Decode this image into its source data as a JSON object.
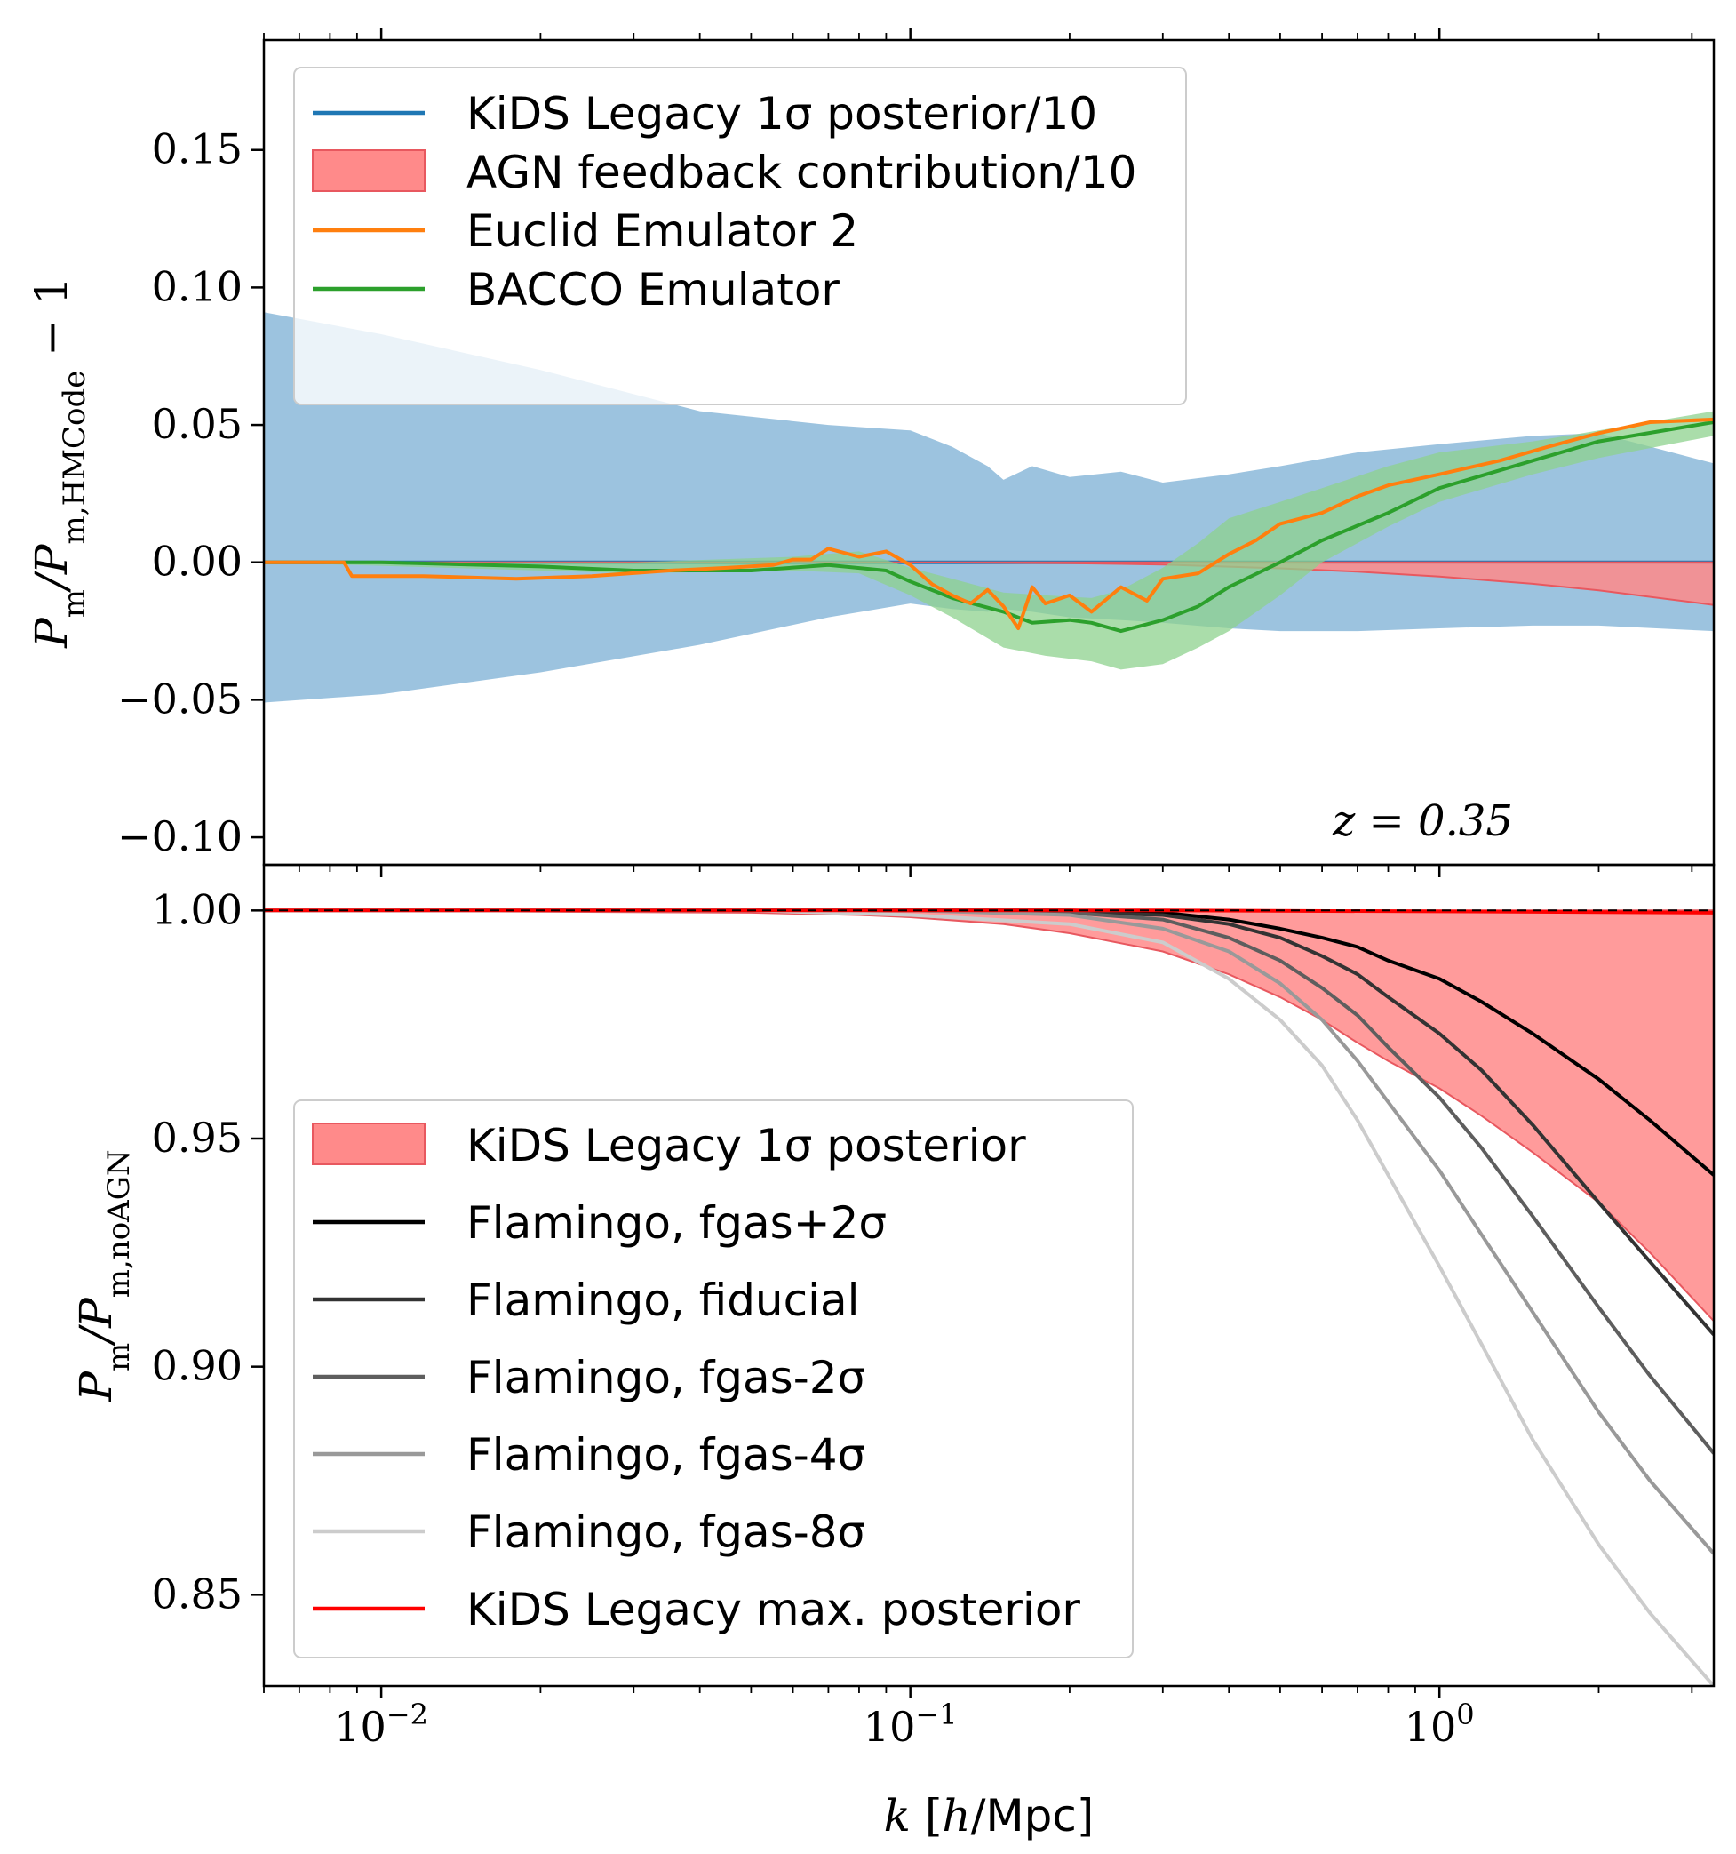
{
  "chart_data": [
    {
      "type": "line",
      "panel": "top",
      "title": "",
      "xlabel": "",
      "ylabel": "Pm/Pm,HMCode − 1",
      "ylabel_main": "P",
      "ylabel_sub1": "m",
      "ylabel_mid": "/P",
      "ylabel_sub2": "m,HMCode",
      "ylabel_tail": " − 1",
      "xscale": "log",
      "xlim": [
        0.006,
        3.3
      ],
      "ylim": [
        -0.11,
        0.19
      ],
      "yticks": [
        0.15,
        0.1,
        0.05,
        0.0,
        -0.05,
        -0.1
      ],
      "ytick_labels": [
        "0.15",
        "0.10",
        "0.05",
        "0.00",
        "−0.05",
        "−0.10"
      ],
      "annotation": "z = 0.35",
      "legend_position": "upper-left",
      "legend": [
        {
          "label": "KiDS Legacy 1σ posterior/10",
          "kind": "line",
          "color": "#1f77b4"
        },
        {
          "label": "AGN feedback contribution/10",
          "kind": "patch",
          "color": "#ff8a8a",
          "edge": "#e8585f"
        },
        {
          "label": "Euclid Emulator 2",
          "kind": "line",
          "color": "#ff7f0e"
        },
        {
          "label": "BACCO Emulator",
          "kind": "line",
          "color": "#2ca02c"
        }
      ],
      "series": [
        {
          "name": "KiDS Legacy 1σ posterior/10 band",
          "kind": "band",
          "color": "#7bafd4",
          "x": [
            0.006,
            0.01,
            0.02,
            0.04,
            0.07,
            0.1,
            0.12,
            0.14,
            0.15,
            0.17,
            0.2,
            0.25,
            0.3,
            0.4,
            0.5,
            0.7,
            1.0,
            1.5,
            2.0,
            3.3
          ],
          "upper": [
            0.091,
            0.083,
            0.07,
            0.055,
            0.05,
            0.048,
            0.042,
            0.035,
            0.03,
            0.035,
            0.031,
            0.033,
            0.029,
            0.032,
            0.035,
            0.04,
            0.043,
            0.046,
            0.047,
            0.036
          ],
          "lower": [
            -0.051,
            -0.048,
            -0.04,
            -0.03,
            -0.02,
            -0.015,
            -0.017,
            -0.018,
            -0.017,
            -0.018,
            -0.02,
            -0.021,
            -0.022,
            -0.024,
            -0.025,
            -0.025,
            -0.024,
            -0.023,
            -0.023,
            -0.025
          ]
        },
        {
          "name": "KiDS Legacy 1σ posterior/10",
          "kind": "line",
          "color": "#1f77b4",
          "x": [
            0.006,
            3.3
          ],
          "y": [
            0.0,
            0.0
          ]
        },
        {
          "name": "AGN feedback contribution/10",
          "kind": "band",
          "color": "#ff8a8a",
          "edge": "#e8585f",
          "x": [
            0.006,
            0.1,
            0.2,
            0.3,
            0.5,
            0.7,
            1.0,
            1.5,
            2.0,
            3.3
          ],
          "upper": [
            0,
            0,
            0,
            0,
            0,
            0,
            0,
            0,
            0,
            0
          ],
          "lower": [
            0,
            0,
            -0.0003,
            -0.0008,
            -0.0022,
            -0.0034,
            -0.0052,
            -0.0078,
            -0.0102,
            -0.0155
          ]
        },
        {
          "name": "BACCO Emulator band",
          "kind": "band",
          "color": "#8ed28e",
          "x": [
            0.006,
            0.03,
            0.06,
            0.08,
            0.1,
            0.12,
            0.15,
            0.18,
            0.22,
            0.25,
            0.3,
            0.35,
            0.4,
            0.5,
            0.6,
            0.8,
            1.0,
            1.5,
            2.0,
            3.3
          ],
          "upper": [
            0.0,
            0.0,
            0.002,
            0.004,
            -0.002,
            -0.006,
            -0.011,
            -0.012,
            -0.013,
            -0.01,
            -0.002,
            0.007,
            0.016,
            0.022,
            0.027,
            0.035,
            0.04,
            0.044,
            0.048,
            0.055
          ],
          "lower": [
            0.0,
            -0.004,
            -0.003,
            -0.004,
            -0.012,
            -0.02,
            -0.031,
            -0.034,
            -0.036,
            -0.039,
            -0.037,
            -0.031,
            -0.025,
            -0.012,
            0.0,
            0.013,
            0.022,
            0.032,
            0.038,
            0.046
          ]
        },
        {
          "name": "BACCO Emulator",
          "kind": "line",
          "color": "#2ca02c",
          "x": [
            0.006,
            0.01,
            0.02,
            0.03,
            0.05,
            0.07,
            0.09,
            0.1,
            0.12,
            0.15,
            0.17,
            0.2,
            0.22,
            0.25,
            0.3,
            0.35,
            0.4,
            0.5,
            0.6,
            0.8,
            1.0,
            1.5,
            2.0,
            3.3
          ],
          "y": [
            0.0,
            0.0,
            -0.0015,
            -0.003,
            -0.003,
            -0.001,
            -0.003,
            -0.007,
            -0.013,
            -0.018,
            -0.022,
            -0.021,
            -0.022,
            -0.025,
            -0.021,
            -0.016,
            -0.009,
            0.0,
            0.008,
            0.018,
            0.027,
            0.037,
            0.044,
            0.051
          ]
        },
        {
          "name": "Euclid Emulator 2",
          "kind": "line",
          "color": "#ff7f0e",
          "x": [
            0.006,
            0.0085,
            0.0088,
            0.012,
            0.018,
            0.025,
            0.035,
            0.045,
            0.055,
            0.06,
            0.065,
            0.07,
            0.08,
            0.09,
            0.1,
            0.11,
            0.12,
            0.13,
            0.14,
            0.15,
            0.16,
            0.17,
            0.18,
            0.2,
            0.22,
            0.25,
            0.28,
            0.3,
            0.35,
            0.4,
            0.45,
            0.5,
            0.6,
            0.7,
            0.8,
            1.0,
            1.3,
            1.6,
            2.0,
            2.5,
            3.3
          ],
          "y": [
            0.0,
            0.0,
            -0.005,
            -0.005,
            -0.006,
            -0.005,
            -0.003,
            -0.002,
            -0.001,
            0.001,
            0.001,
            0.005,
            0.002,
            0.004,
            -0.001,
            -0.008,
            -0.012,
            -0.015,
            -0.01,
            -0.016,
            -0.024,
            -0.009,
            -0.015,
            -0.012,
            -0.018,
            -0.009,
            -0.014,
            -0.006,
            -0.004,
            0.003,
            0.008,
            0.014,
            0.018,
            0.024,
            0.028,
            0.032,
            0.037,
            0.042,
            0.047,
            0.051,
            0.052
          ]
        }
      ]
    },
    {
      "type": "line",
      "panel": "bottom",
      "title": "",
      "xlabel": "k [h/Mpc]",
      "xlabel_k": "k",
      "xlabel_open": "[",
      "xlabel_h": "h",
      "xlabel_unit": "/Mpc]",
      "ylabel": "Pm/Pm,noAGN",
      "ylabel_main": "P",
      "ylabel_sub1": "m",
      "ylabel_mid": "/P",
      "ylabel_sub2": "m,noAGN",
      "xscale": "log",
      "xlim": [
        0.006,
        3.3
      ],
      "ylim": [
        0.83,
        1.01
      ],
      "yticks": [
        1.0,
        0.95,
        0.9,
        0.85
      ],
      "ytick_labels": [
        "1.00",
        "0.95",
        "0.90",
        "0.85"
      ],
      "xticks": [
        0.01,
        0.1,
        1.0
      ],
      "xtick_base": "10",
      "xtick_exponents": [
        "−2",
        "−1",
        "0"
      ],
      "legend_position": "lower-left",
      "legend": [
        {
          "label": "KiDS Legacy 1σ posterior",
          "kind": "patch",
          "color": "#ff8a8a",
          "edge": "#e8585f"
        },
        {
          "label": "Flamingo, fgas+2σ",
          "kind": "line",
          "color": "#000000"
        },
        {
          "label": "Flamingo, fiducial",
          "kind": "line",
          "color": "#333333"
        },
        {
          "label": "Flamingo, fgas-2σ",
          "kind": "line",
          "color": "#5e5e5e"
        },
        {
          "label": "Flamingo, fgas-4σ",
          "kind": "line",
          "color": "#999999"
        },
        {
          "label": "Flamingo, fgas-8σ",
          "kind": "line",
          "color": "#cccccc"
        },
        {
          "label": "KiDS Legacy max. posterior",
          "kind": "line",
          "color": "#ff0000"
        }
      ],
      "series": [
        {
          "name": "KiDS Legacy 1σ posterior",
          "kind": "band",
          "color": "#ff8a8a",
          "edge": "#e8585f",
          "x": [
            0.006,
            0.05,
            0.08,
            0.1,
            0.15,
            0.2,
            0.3,
            0.4,
            0.5,
            0.6,
            0.7,
            0.8,
            1.0,
            1.2,
            1.5,
            2.0,
            2.5,
            3.3
          ],
          "upper": [
            1.0,
            1.0,
            1.0,
            1.0,
            1.0,
            1.0,
            1.0,
            1.0,
            1.0,
            1.0,
            1.0,
            1.0,
            1.0,
            1.0,
            1.0,
            1.0,
            1.0,
            1.0
          ],
          "lower": [
            1.0,
            0.9995,
            0.999,
            0.9985,
            0.997,
            0.995,
            0.991,
            0.986,
            0.981,
            0.976,
            0.971,
            0.967,
            0.961,
            0.955,
            0.947,
            0.936,
            0.925,
            0.91
          ]
        },
        {
          "name": "Flamingo, fgas+2σ",
          "kind": "line",
          "color": "#000000",
          "x": [
            0.006,
            0.1,
            0.2,
            0.3,
            0.4,
            0.5,
            0.6,
            0.7,
            0.8,
            1.0,
            1.2,
            1.5,
            2.0,
            2.5,
            3.3
          ],
          "y": [
            1.0,
            1.0,
            1.0,
            0.9995,
            0.998,
            0.996,
            0.994,
            0.992,
            0.989,
            0.985,
            0.98,
            0.973,
            0.963,
            0.954,
            0.942
          ]
        },
        {
          "name": "Flamingo, fiducial",
          "kind": "line",
          "color": "#333333",
          "x": [
            0.006,
            0.1,
            0.2,
            0.3,
            0.4,
            0.5,
            0.6,
            0.7,
            0.8,
            1.0,
            1.2,
            1.5,
            2.0,
            2.5,
            3.3
          ],
          "y": [
            1.0,
            1.0,
            0.9995,
            0.999,
            0.997,
            0.994,
            0.99,
            0.986,
            0.981,
            0.973,
            0.965,
            0.953,
            0.936,
            0.923,
            0.907
          ]
        },
        {
          "name": "Flamingo, fgas-2σ",
          "kind": "line",
          "color": "#5e5e5e",
          "x": [
            0.006,
            0.1,
            0.2,
            0.3,
            0.4,
            0.5,
            0.6,
            0.7,
            0.8,
            1.0,
            1.2,
            1.5,
            2.0,
            2.5,
            3.3
          ],
          "y": [
            1.0,
            1.0,
            0.9995,
            0.998,
            0.994,
            0.989,
            0.983,
            0.977,
            0.97,
            0.959,
            0.948,
            0.933,
            0.913,
            0.898,
            0.881
          ]
        },
        {
          "name": "Flamingo, fgas-4σ",
          "kind": "line",
          "color": "#999999",
          "x": [
            0.006,
            0.1,
            0.2,
            0.3,
            0.4,
            0.5,
            0.6,
            0.7,
            0.8,
            1.0,
            1.2,
            1.5,
            2.0,
            2.5,
            3.3
          ],
          "y": [
            1.0,
            1.0,
            0.999,
            0.996,
            0.991,
            0.984,
            0.976,
            0.967,
            0.958,
            0.943,
            0.929,
            0.912,
            0.89,
            0.875,
            0.859
          ]
        },
        {
          "name": "Flamingo, fgas-8σ",
          "kind": "line",
          "color": "#cccccc",
          "x": [
            0.006,
            0.05,
            0.1,
            0.2,
            0.3,
            0.4,
            0.5,
            0.6,
            0.7,
            0.8,
            1.0,
            1.2,
            1.5,
            2.0,
            2.5,
            3.3
          ],
          "y": [
            1.0,
            1.0,
            0.999,
            0.997,
            0.993,
            0.985,
            0.976,
            0.966,
            0.954,
            0.942,
            0.922,
            0.905,
            0.884,
            0.861,
            0.846,
            0.83
          ]
        },
        {
          "name": "KiDS Legacy max. posterior",
          "kind": "line",
          "color": "#ff0000",
          "x": [
            0.006,
            0.3,
            1.0,
            3.3
          ],
          "y": [
            1.0,
            1.0,
            0.9998,
            0.9995
          ]
        },
        {
          "name": "reference",
          "kind": "dashed",
          "color": "#000000",
          "x": [
            0.006,
            3.3
          ],
          "y": [
            1.0,
            1.0
          ]
        }
      ]
    }
  ]
}
